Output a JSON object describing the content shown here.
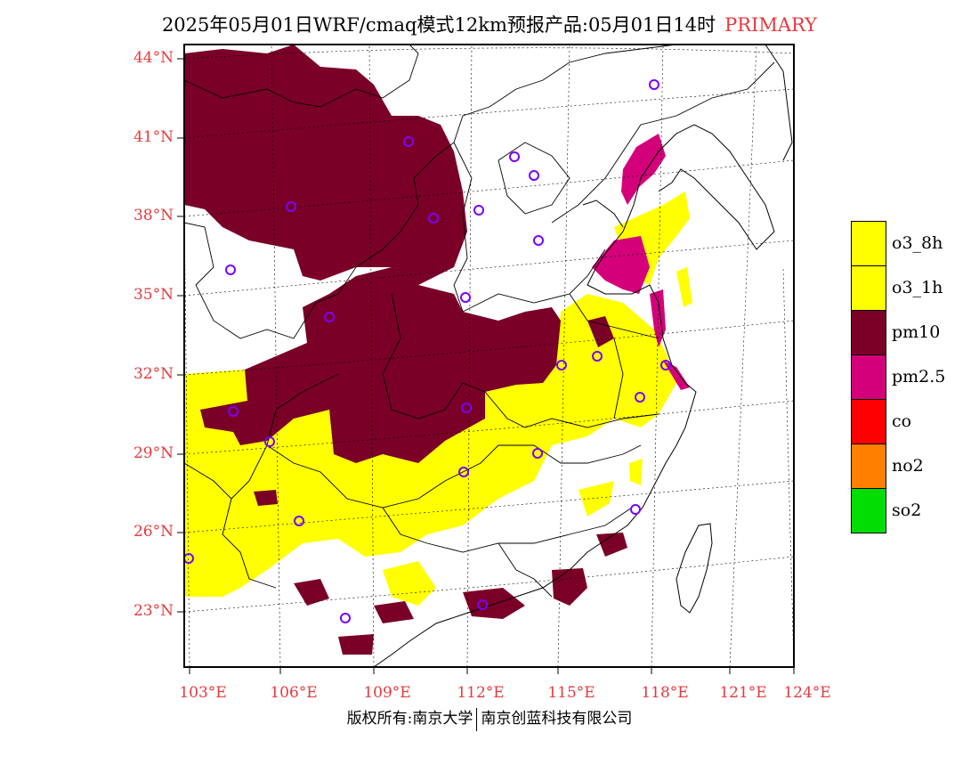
{
  "title": {
    "main": "2025年05月01日WRF/cmaq模式12km预报产品:05月01日14时",
    "tag": "PRIMARY"
  },
  "axes": {
    "lat_labels": [
      "44°N",
      "41°N",
      "38°N",
      "35°N",
      "32°N",
      "29°N",
      "26°N",
      "23°N"
    ],
    "lon_labels": [
      "103°E",
      "106°E",
      "109°E",
      "112°E",
      "115°E",
      "118°E",
      "121°E",
      "124°E"
    ]
  },
  "legend": [
    {
      "label": "o3_8h",
      "color": "#ffff00"
    },
    {
      "label": "o3_1h",
      "color": "#ffff00"
    },
    {
      "label": "pm10",
      "color": "#7b0027"
    },
    {
      "label": "pm2.5",
      "color": "#d4007a"
    },
    {
      "label": "co",
      "color": "#ff0000"
    },
    {
      "label": "no2",
      "color": "#ff7f00"
    },
    {
      "label": "so2",
      "color": "#00dd00"
    }
  ],
  "copyright": {
    "left": "版权所有:南京大学",
    "right": "南京创蓝科技有限公司"
  }
}
